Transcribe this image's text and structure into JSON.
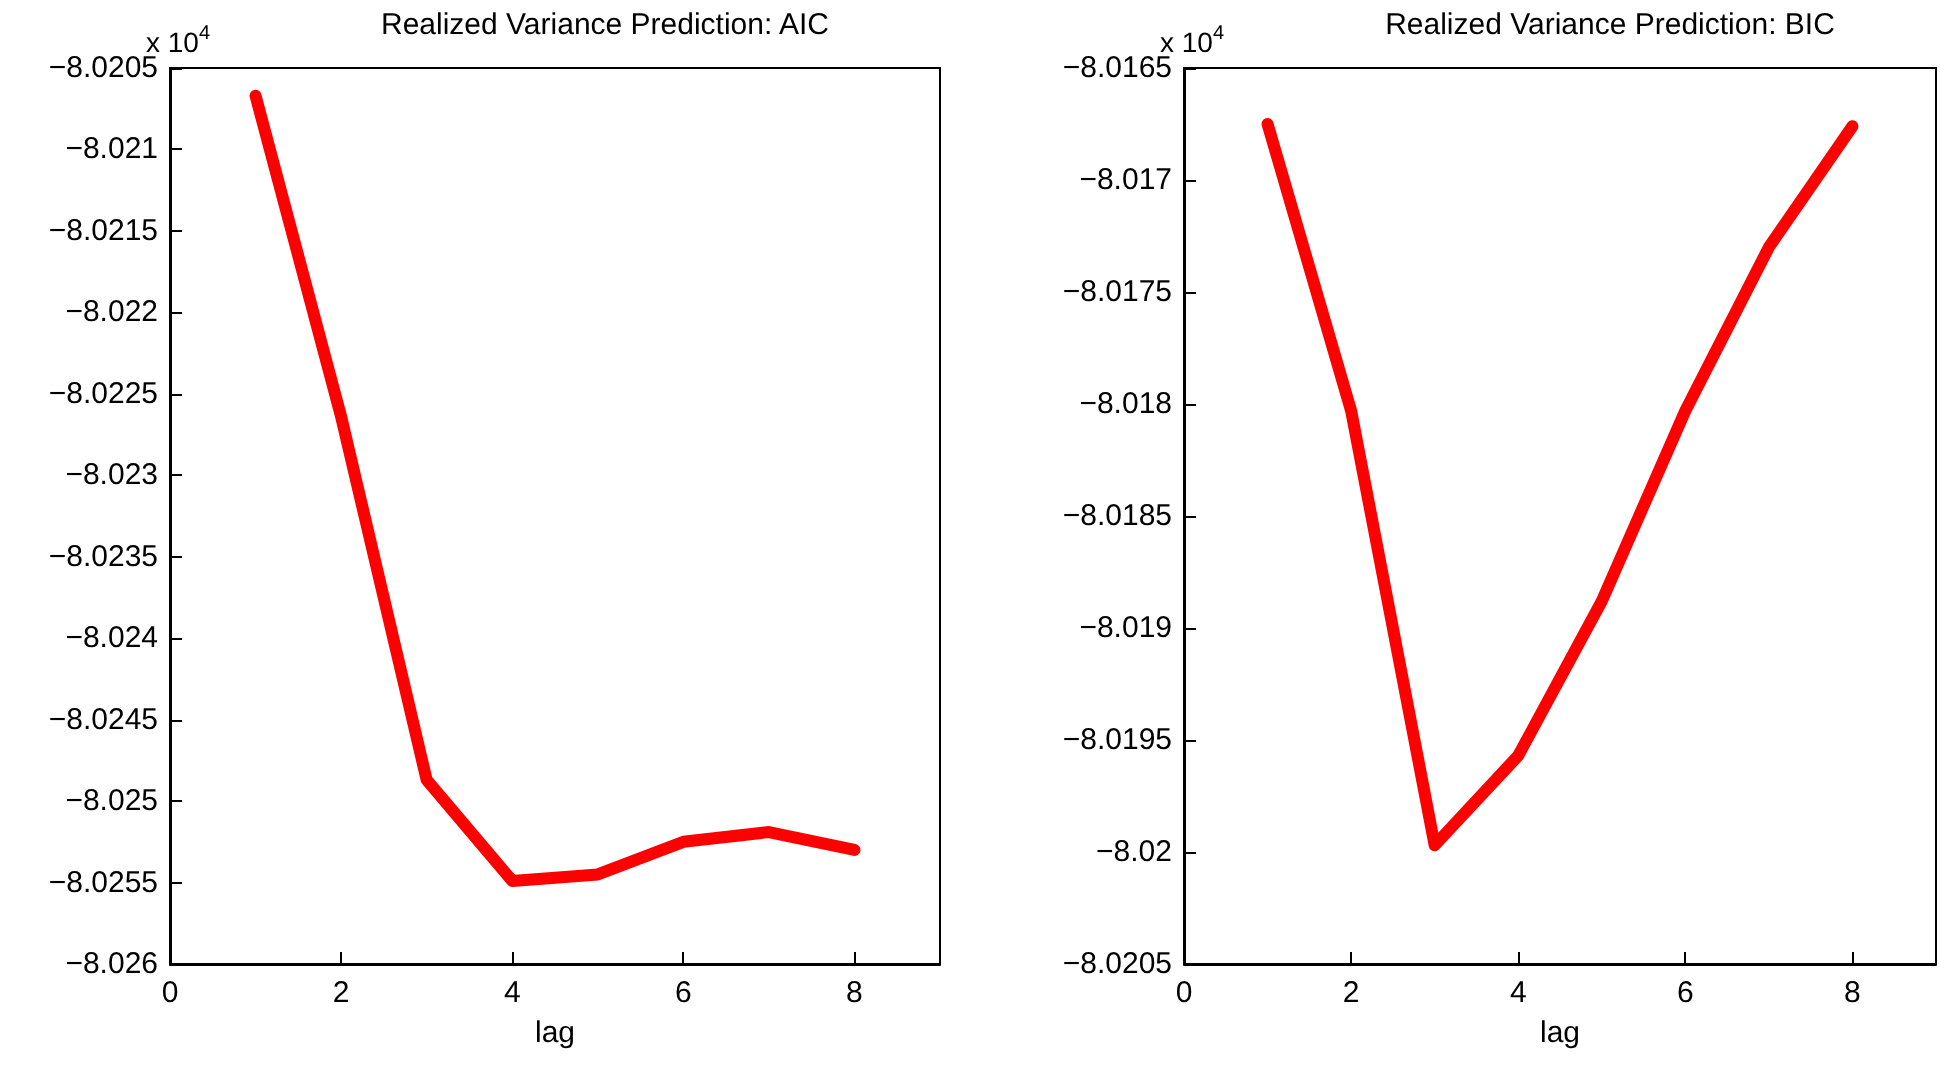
{
  "chart_data": [
    {
      "type": "line",
      "title": "Realized Variance Prediction: AIC",
      "xlabel": "lag",
      "annotations": [
        "x 10$^{4}$"
      ],
      "x": [
        1,
        2,
        3,
        4,
        5,
        6,
        7,
        8
      ],
      "series": [
        {
          "color": "#ff0000",
          "values": [
            -8.02067,
            -8.02264,
            -8.02487,
            -8.02549,
            -8.02545,
            -8.02525,
            -8.02519,
            -8.0253
          ]
        }
      ],
      "xlim": [
        0,
        9
      ],
      "xticks": [
        0,
        2,
        4,
        6,
        8
      ],
      "ylim": [
        -8.026,
        -8.0205
      ],
      "yticks": [
        {
          "value": -8.026,
          "label": "−8.026"
        },
        {
          "value": -8.0255,
          "label": "−8.0255"
        },
        {
          "value": -8.025,
          "label": "−8.025"
        },
        {
          "value": -8.0245,
          "label": "−8.0245"
        },
        {
          "value": -8.024,
          "label": "−8.024"
        },
        {
          "value": -8.0235,
          "label": "−8.0235"
        },
        {
          "value": -8.023,
          "label": "−8.023"
        },
        {
          "value": -8.0225,
          "label": "−8.0225"
        },
        {
          "value": -8.022,
          "label": "−8.022"
        },
        {
          "value": -8.0215,
          "label": "−8.0215"
        },
        {
          "value": -8.021,
          "label": "−8.021"
        },
        {
          "value": -8.0205,
          "label": "−8.0205"
        }
      ],
      "grid": false,
      "marker": "none",
      "line_style": "solid"
    },
    {
      "type": "line",
      "title": "Realized Variance Prediction: BIC",
      "xlabel": "lag",
      "annotations": [
        "x 10$^{4}$"
      ],
      "x": [
        1,
        2,
        3,
        4,
        5,
        6,
        7,
        8
      ],
      "series": [
        {
          "color": "#ff0000",
          "values": [
            -8.01675,
            -8.01803,
            -8.01997,
            -8.01957,
            -8.01888,
            -8.01803,
            -8.0173,
            -8.01676
          ]
        }
      ],
      "xlim": [
        0,
        9
      ],
      "xticks": [
        0,
        2,
        4,
        6,
        8
      ],
      "ylim": [
        -8.0205,
        -8.0165
      ],
      "yticks": [
        {
          "value": -8.0205,
          "label": "−8.0205"
        },
        {
          "value": -8.02,
          "label": "−8.02"
        },
        {
          "value": -8.0195,
          "label": "−8.0195"
        },
        {
          "value": -8.019,
          "label": "−8.019"
        },
        {
          "value": -8.0185,
          "label": "−8.0185"
        },
        {
          "value": -8.018,
          "label": "−8.018"
        },
        {
          "value": -8.0175,
          "label": "−8.0175"
        },
        {
          "value": -8.017,
          "label": "−8.017"
        },
        {
          "value": -8.0165,
          "label": "−8.0165"
        }
      ],
      "grid": false,
      "marker": "none",
      "line_style": "solid"
    }
  ]
}
